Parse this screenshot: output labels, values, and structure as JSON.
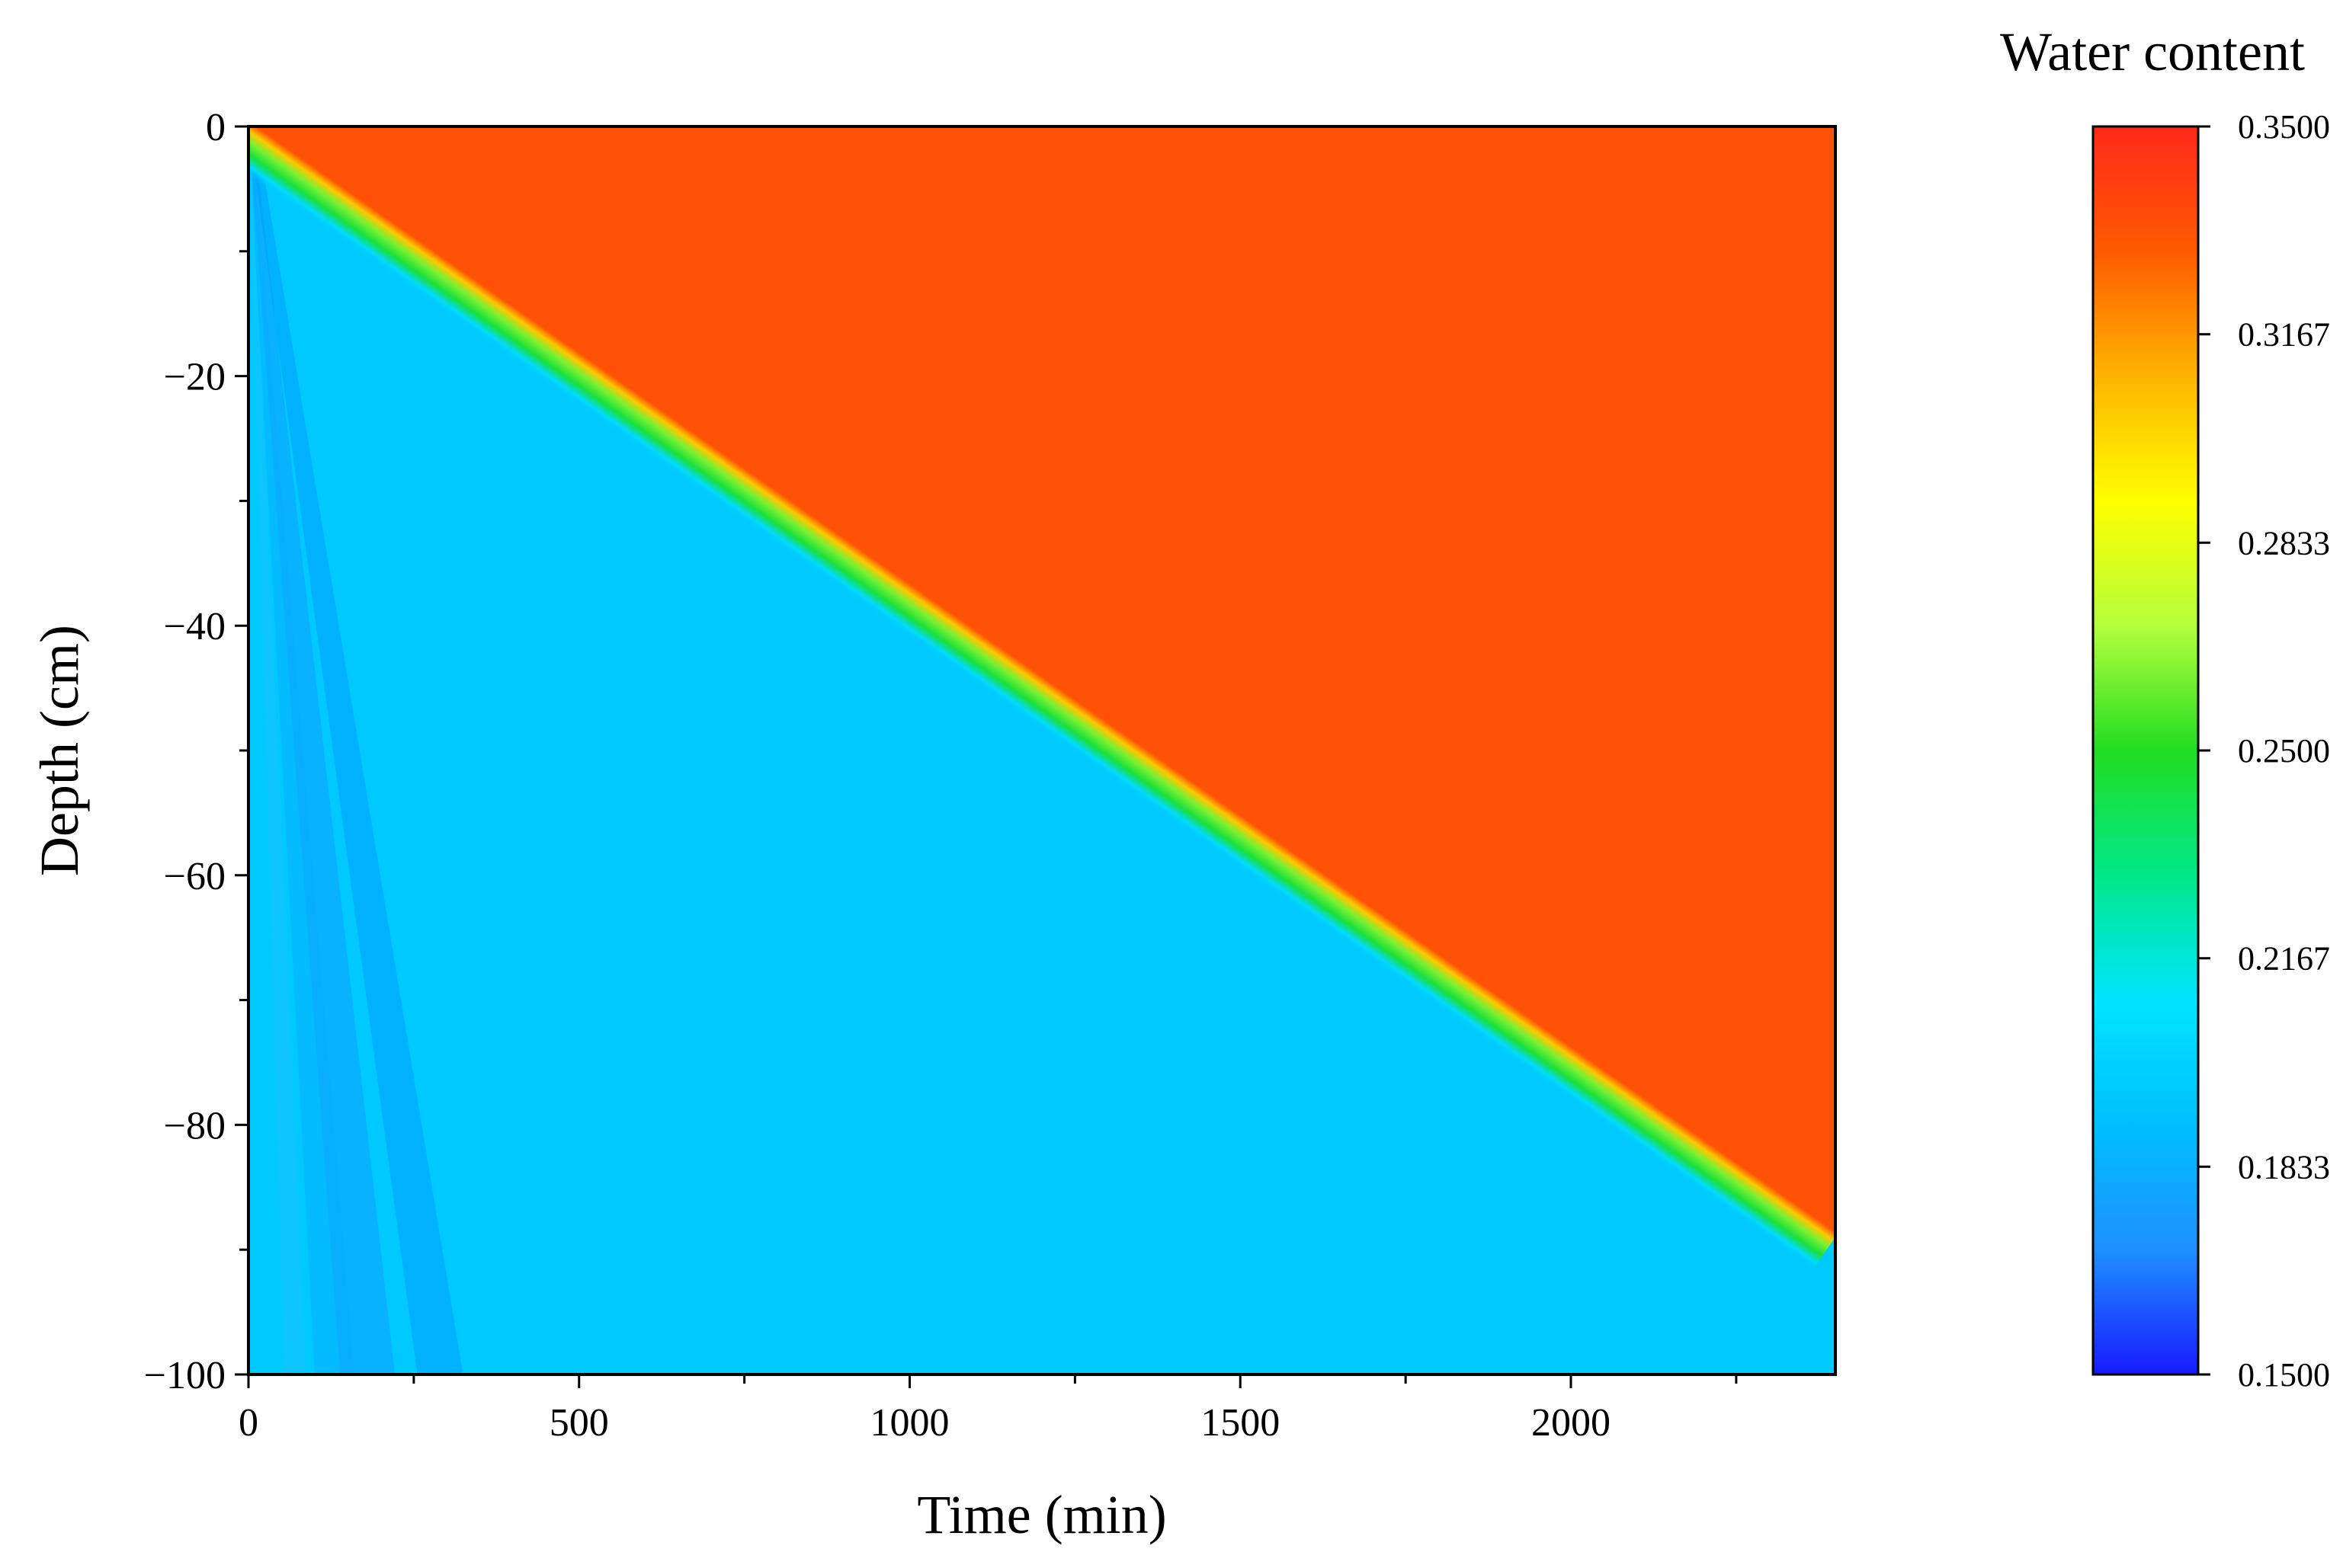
{
  "chart_data": {
    "type": "heatmap",
    "title": "",
    "xlabel": "Time (min)",
    "ylabel": "Depth (cm)",
    "xlim": [
      0,
      2400
    ],
    "ylim": [
      -100,
      0
    ],
    "x_ticks": [
      0,
      500,
      1000,
      1500,
      2000
    ],
    "x_tick_labels": [
      "0",
      "500",
      "1000",
      "1500",
      "2000"
    ],
    "y_ticks": [
      0,
      -20,
      -40,
      -60,
      -80,
      -100
    ],
    "y_tick_labels": [
      "0",
      "−20",
      "−40",
      "−60",
      "−80",
      "−100"
    ],
    "colorbar": {
      "title": "Water content",
      "min": 0.15,
      "max": 0.35,
      "ticks": [
        0.35,
        0.3167,
        0.2833,
        0.25,
        0.2167,
        0.1833,
        0.15
      ],
      "tick_labels": [
        "0.3500",
        "0.3167",
        "0.2833",
        "0.2500",
        "0.2167",
        "0.1833",
        "0.1500"
      ],
      "colormap": [
        "#1a1aff",
        "#1e90ff",
        "#00bfff",
        "#00e5ff",
        "#00e88a",
        "#22dd22",
        "#b4ff3c",
        "#ffff00",
        "#ffb400",
        "#ff5a00",
        "#ff2a1a"
      ]
    },
    "field": {
      "wetted_value": 0.3332,
      "initial_value": 0.1955,
      "wetting_front": [
        {
          "time": 0,
          "depth": 0
        },
        {
          "time": 2400,
          "depth": -89
        }
      ],
      "note_front_colors": [
        "yellow",
        "green",
        "cyan"
      ]
    }
  }
}
